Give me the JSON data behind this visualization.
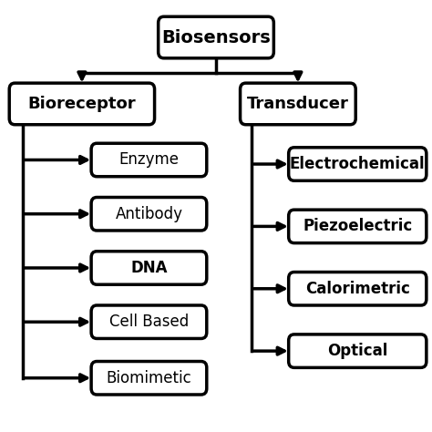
{
  "title": "Biosensors",
  "left_parent": "Bioreceptor",
  "right_parent": "Transducer",
  "left_children": [
    "Enzyme",
    "Antibody",
    "DNA",
    "Cell Based",
    "Biomimetic"
  ],
  "right_children": [
    "Electrochemical",
    "Piezoelectric",
    "Calorimetric",
    "Optical"
  ],
  "bg_color": "#ffffff",
  "box_color": "#ffffff",
  "box_edge_color": "#000000",
  "text_color": "#000000",
  "line_color": "#000000",
  "font_size_title": 14,
  "font_size_parent": 13,
  "font_size_child": 12,
  "line_width": 2.5
}
